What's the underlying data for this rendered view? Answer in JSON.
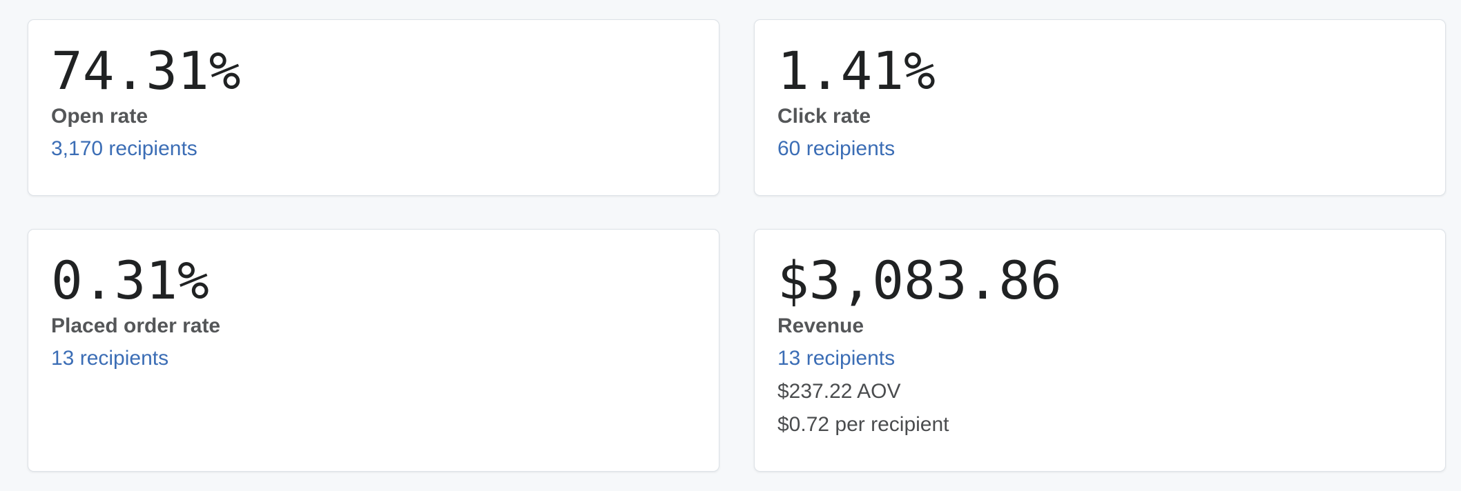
{
  "metrics": {
    "open_rate": {
      "value": "74.31%",
      "label": "Open rate",
      "recipients": "3,170 recipients"
    },
    "click_rate": {
      "value": "1.41%",
      "label": "Click rate",
      "recipients": "60 recipients"
    },
    "placed_order_rate": {
      "value": "0.31%",
      "label": "Placed order rate",
      "recipients": "13 recipients"
    },
    "revenue": {
      "value": "$3,083.86",
      "label": "Revenue",
      "recipients": "13 recipients",
      "aov": "$237.22 AOV",
      "per_recipient": "$0.72 per recipient"
    }
  },
  "colors": {
    "background": "#f6f8fa",
    "card": "#ffffff",
    "value_text": "#202223",
    "label_text": "#545658",
    "link": "#3b6db5"
  }
}
